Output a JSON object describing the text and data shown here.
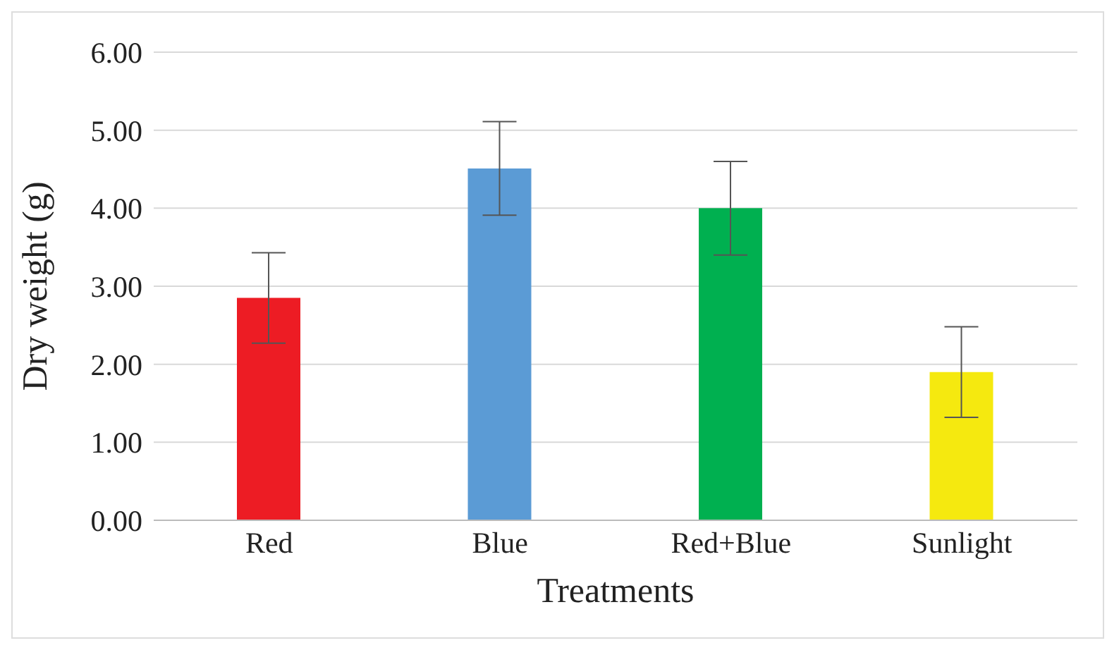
{
  "chart_data": {
    "type": "bar",
    "xlabel": "Treatments",
    "ylabel": "Dry weight (g)",
    "categories": [
      "Red",
      "Blue",
      "Red+Blue",
      "Sunlight"
    ],
    "values": [
      2.85,
      4.51,
      4.0,
      1.9
    ],
    "colors": [
      "#ed1c24",
      "#5b9bd5",
      "#00b050",
      "#f5e90f"
    ],
    "errors": [
      0.58,
      0.6,
      0.6,
      0.58
    ],
    "ylim": [
      0,
      6
    ],
    "yticks": [
      {
        "value": 0,
        "label": "0.00"
      },
      {
        "value": 1,
        "label": "1.00"
      },
      {
        "value": 2,
        "label": "2.00"
      },
      {
        "value": 3,
        "label": "3.00"
      },
      {
        "value": 4,
        "label": "4.00"
      },
      {
        "value": 5,
        "label": "5.00"
      },
      {
        "value": 6,
        "label": "6.00"
      }
    ],
    "grid": "y",
    "legend": false
  }
}
